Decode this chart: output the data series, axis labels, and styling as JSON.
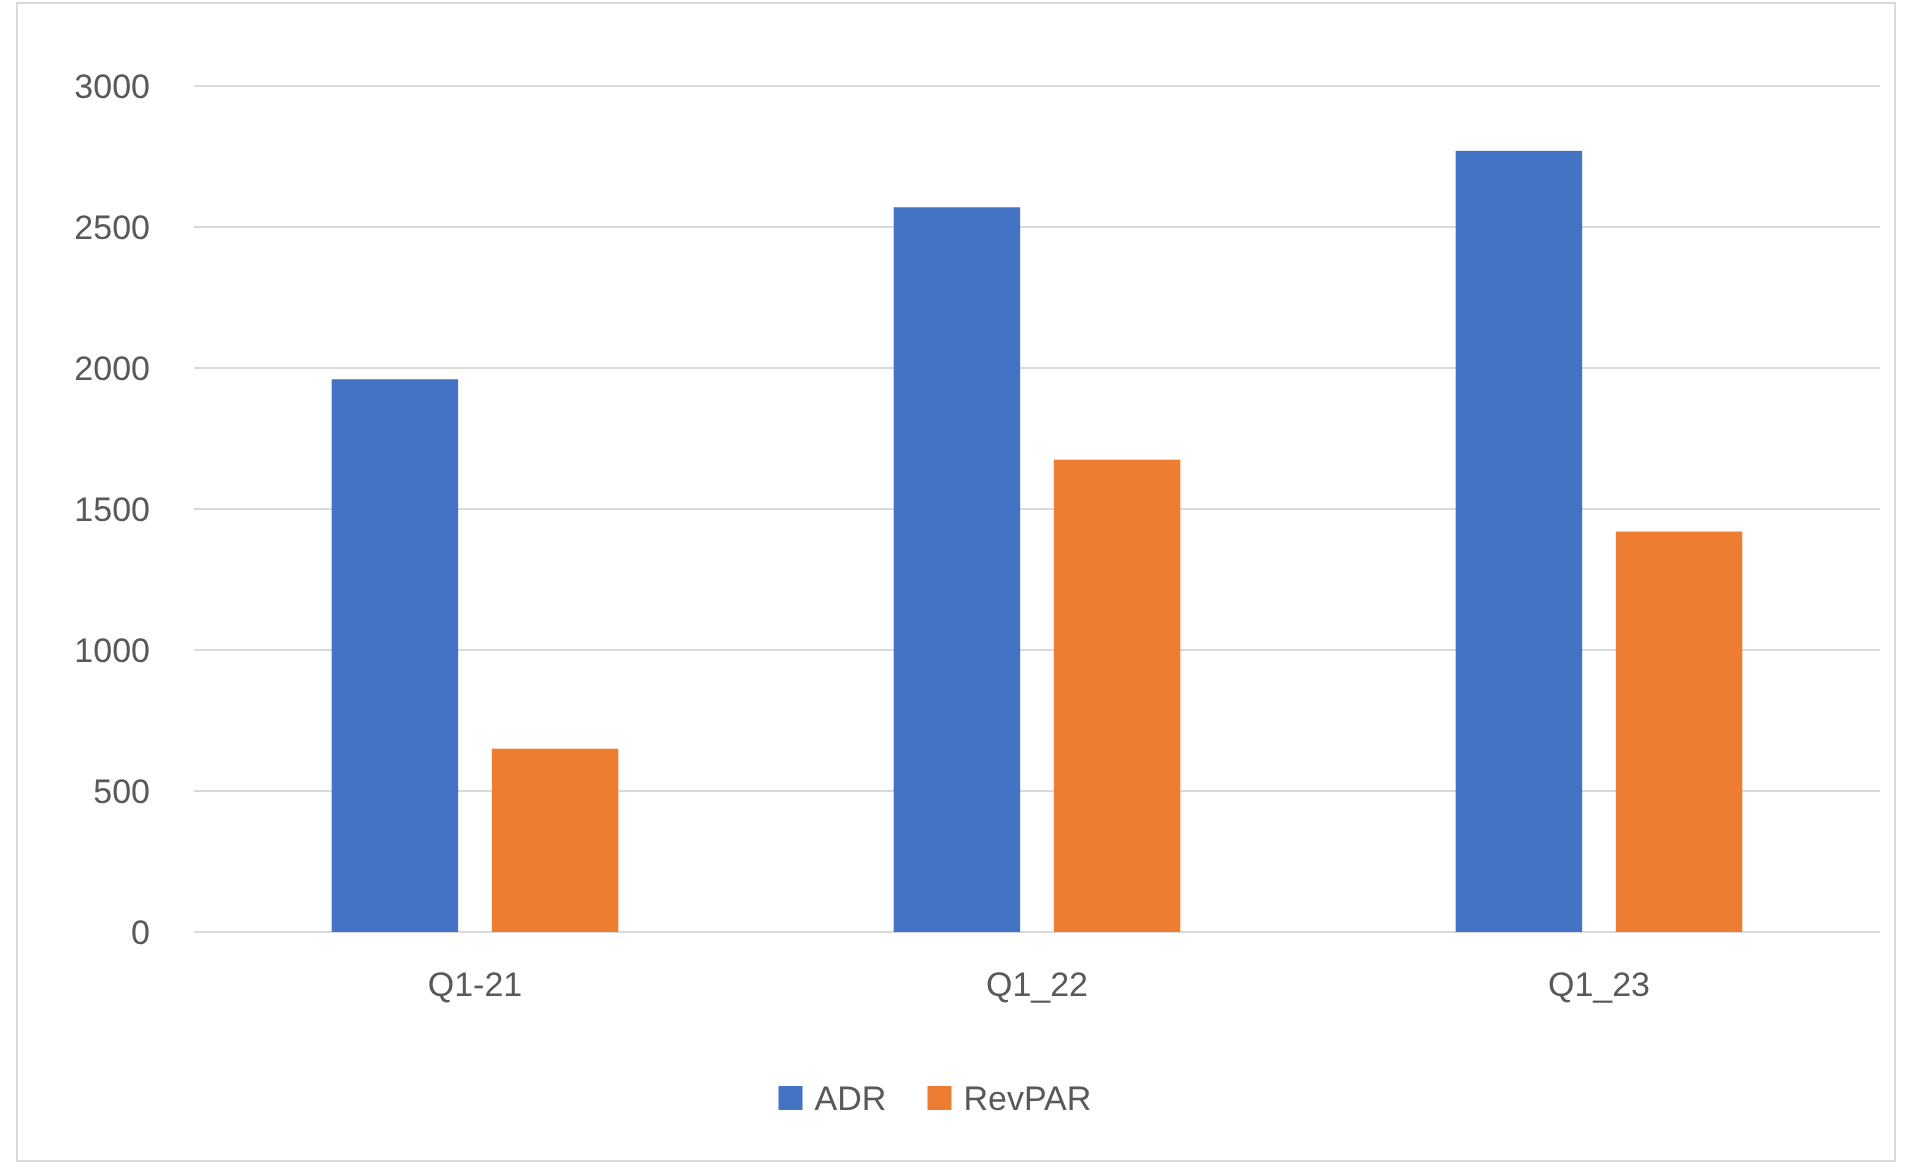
{
  "chart_data": {
    "type": "bar",
    "categories": [
      "Q1-21",
      "Q1_22",
      "Q1_23"
    ],
    "series": [
      {
        "name": "ADR",
        "color": "#4472c4",
        "values": [
          1960,
          2570,
          2770
        ]
      },
      {
        "name": "RevPAR",
        "color": "#ed7d31",
        "values": [
          650,
          1675,
          1420
        ]
      }
    ],
    "ylim": [
      0,
      3000
    ],
    "yticks": [
      0,
      500,
      1000,
      1500,
      2000,
      2500,
      3000
    ],
    "grid": "y",
    "legend": "bottom"
  }
}
